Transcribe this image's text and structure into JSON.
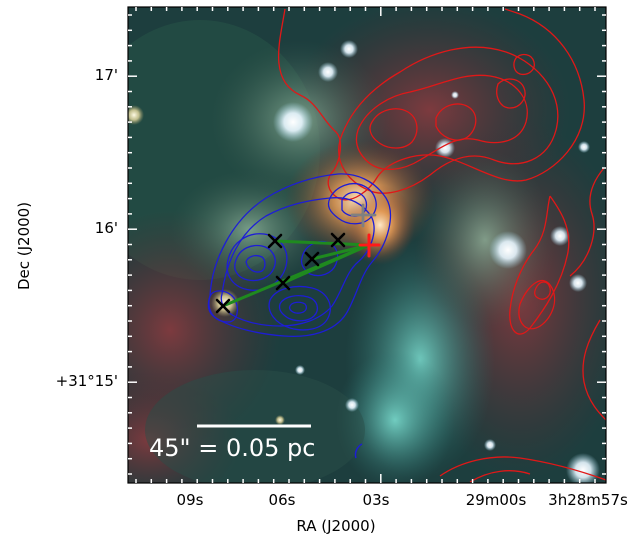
{
  "figure": {
    "colors": {
      "red_contour": "#e01818",
      "blue_contour": "#1d1dd6",
      "green_link": "#1f8a1f",
      "marker": "#000000",
      "gray_cross": "#808080",
      "red_cross": "#ff1a1a",
      "frame": "#000000",
      "scale_bar": "#ffffff"
    },
    "axes": {
      "xlabel": "RA (J2000)",
      "ylabel": "Dec (J2000)",
      "x_ticks": [
        "09s",
        "06s",
        "03s",
        "29m00s",
        "3h28m57s"
      ],
      "y_ticks": [
        "17'",
        "16'",
        "+31°15'"
      ],
      "tick_direction": "in",
      "tick_color": "white"
    },
    "scale_bar": {
      "label": "45\" = 0.05 pc"
    },
    "markers": {
      "symbol": "x",
      "count": 6
    },
    "crosses": [
      {
        "name": "gray",
        "symbol": "+"
      },
      {
        "name": "red",
        "symbol": "+"
      }
    ],
    "green_links": {
      "count": 4
    },
    "background": "false-color infrared composite (red, green, cyan nebulosity with white point sources)"
  }
}
